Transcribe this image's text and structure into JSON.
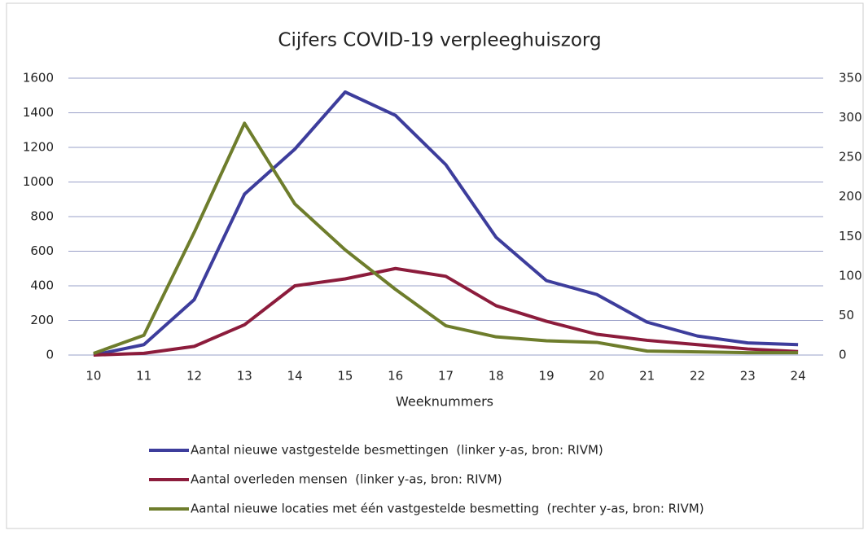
{
  "chart_data": {
    "type": "line",
    "title": "Cijfers COVID-19 verpleeghuiszorg",
    "xlabel": "Weeknummers",
    "categories": [
      "10",
      "11",
      "12",
      "13",
      "14",
      "15",
      "16",
      "17",
      "18",
      "19",
      "20",
      "21",
      "22",
      "23",
      "24"
    ],
    "series": [
      {
        "name": "Aantal nieuwe vastgestelde besmettingen  (linker y-as, bron: RIVM)",
        "color": "#3d3d9c",
        "values": [
          0,
          60,
          320,
          930,
          1190,
          1520,
          1385,
          1100,
          680,
          430,
          350,
          190,
          110,
          70,
          60
        ]
      },
      {
        "name": "Aantal overleden mensen  (linker y-as, bron: RIVM)",
        "color": "#8c1c3c",
        "values": [
          0,
          10,
          50,
          175,
          400,
          440,
          500,
          455,
          285,
          195,
          120,
          85,
          60,
          35,
          20
        ]
      },
      {
        "name": "Aantal nieuwe locaties met één vastgestelde besmetting  (rechter y-as, bron: RIVM)",
        "color": "#6e7d2c",
        "axis": "y2",
        "values": [
          2,
          25,
          155,
          293,
          191,
          133,
          83,
          37,
          23,
          18,
          16,
          5,
          4,
          3,
          3
        ]
      }
    ],
    "ylim": [
      0,
      1600
    ],
    "yticks": [
      0,
      200,
      400,
      600,
      800,
      1000,
      1200,
      1400,
      1600
    ],
    "y2lim": [
      0,
      350
    ],
    "y2ticks": [
      0,
      50,
      100,
      150,
      200,
      250,
      300,
      350
    ],
    "grid": true,
    "legend": "bottom"
  }
}
